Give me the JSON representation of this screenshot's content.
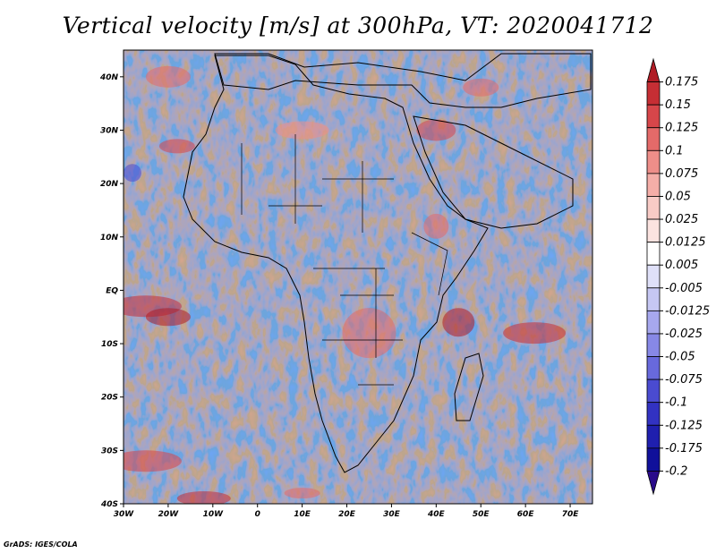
{
  "chart_data": {
    "type": "heatmap",
    "title": "Vertical velocity [m/s] at 300hPa, VT: 2020041712",
    "x_ticks": [
      "30W",
      "20W",
      "10W",
      "0",
      "10E",
      "20E",
      "30E",
      "40E",
      "50E",
      "60E",
      "70E"
    ],
    "x_range": [
      -30,
      75
    ],
    "y_ticks": [
      "40S",
      "30S",
      "20S",
      "10S",
      "EQ",
      "10N",
      "20N",
      "30N",
      "40N"
    ],
    "y_range": [
      -40,
      45
    ],
    "colorbar": {
      "levels": [
        "0.175",
        "0.15",
        "0.125",
        "0.1",
        "0.075",
        "0.05",
        "0.025",
        "0.0125",
        "0.005",
        "-0.005",
        "-0.0125",
        "-0.025",
        "-0.05",
        "-0.075",
        "-0.1",
        "-0.125",
        "-0.175",
        "-0.2"
      ],
      "colors": [
        "#b01c25",
        "#c62e34",
        "#d7464a",
        "#e46a69",
        "#ee8e89",
        "#f5aea8",
        "#f8cbc6",
        "#fbe3e0",
        "#ffffff",
        "#dfe0f8",
        "#c6c7f3",
        "#a7a8ee",
        "#8788e6",
        "#6869dc",
        "#4a4bd0",
        "#3232c2",
        "#1f1fae",
        "#10109a",
        "#2a0b8a"
      ],
      "extend": "both"
    },
    "field_description": "Fine-scale alternating positive (red) and negative (blue) vertical velocity over Africa and surrounding oceans with country boundaries"
  },
  "footer": {
    "credit": "GrADS: IGES/COLA"
  }
}
